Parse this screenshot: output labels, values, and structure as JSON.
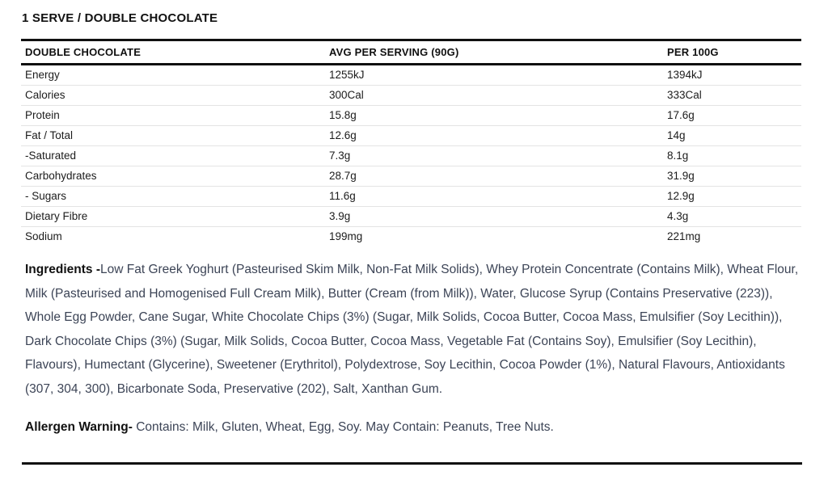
{
  "page": {
    "title": "1 SERVE / DOUBLE CHOCOLATE"
  },
  "nutrition_table": {
    "columns": [
      "DOUBLE CHOCOLATE",
      "AVG PER SERVING (90G)",
      "PER 100G"
    ],
    "rows": [
      {
        "label": "Energy",
        "per_serving": "1255kJ",
        "per_100g": "1394kJ"
      },
      {
        "label": "Calories",
        "per_serving": "300Cal",
        "per_100g": "333Cal"
      },
      {
        "label": "Protein",
        "per_serving": "15.8g",
        "per_100g": "17.6g"
      },
      {
        "label": "Fat / Total",
        "per_serving": "12.6g",
        "per_100g": "14g"
      },
      {
        "label": "-Saturated",
        "per_serving": "7.3g",
        "per_100g": "8.1g"
      },
      {
        "label": "Carbohydrates",
        "per_serving": "28.7g",
        "per_100g": "31.9g"
      },
      {
        "label": "- Sugars",
        "per_serving": "11.6g",
        "per_100g": "12.9g"
      },
      {
        "label": "Dietary Fibre",
        "per_serving": "3.9g",
        "per_100g": "4.3g"
      },
      {
        "label": "Sodium",
        "per_serving": "199mg",
        "per_100g": "221mg"
      }
    ]
  },
  "ingredients": {
    "heading": "Ingredients -",
    "text": "Low Fat Greek Yoghurt (Pasteurised Skim Milk, Non-Fat Milk Solids), Whey Protein Concentrate (Contains Milk), Wheat Flour, Milk (Pasteurised and Homogenised Full Cream Milk), Butter (Cream (from Milk)), Water, Glucose Syrup (Contains Preservative (223)), Whole Egg Powder, Cane Sugar, White Chocolate Chips (3%) (Sugar, Milk Solids, Cocoa Butter, Cocoa Mass, Emulsifier (Soy Lecithin)), Dark Chocolate Chips (3%) (Sugar, Milk Solids, Cocoa Butter, Cocoa Mass, Vegetable Fat (Contains Soy), Emulsifier (Soy Lecithin), Flavours), Humectant (Glycerine), Sweetener (Erythritol), Polydextrose, Soy Lecithin, Cocoa Powder (1%), Natural Flavours, Antioxidants (307, 304, 300), Bicarbonate Soda, Preservative (202), Salt, Xanthan Gum."
  },
  "allergen": {
    "heading": "Allergen Warning-",
    "text": "Contains: Milk, Gluten, Wheat, Egg, Soy. May Contain: Peanuts, Tree Nuts."
  },
  "colors": {
    "text_primary": "#111111",
    "text_body": "#1c1c1c",
    "text_slate": "#3c4456",
    "divider_thick": "#111111",
    "divider_thin": "#e4e4e4"
  }
}
